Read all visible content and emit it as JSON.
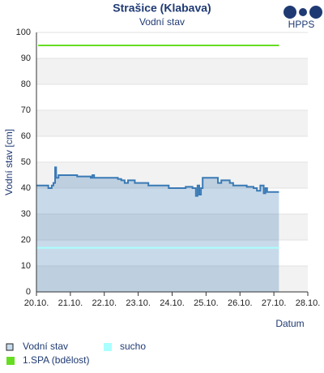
{
  "chart_data": {
    "type": "line",
    "title": "Strašice (Klabava)",
    "subtitle": "Vodní stav",
    "logo": "HPPS",
    "y_label": "Vodní stav [cm]",
    "x_label": "Datum",
    "xlim": [
      20,
      28
    ],
    "xticks": [
      {
        "value": 20,
        "label": "20.10."
      },
      {
        "value": 21,
        "label": "21.10."
      },
      {
        "value": 22,
        "label": "22.10."
      },
      {
        "value": 23,
        "label": "23.10."
      },
      {
        "value": 24,
        "label": "24.10."
      },
      {
        "value": 25,
        "label": "25.10."
      },
      {
        "value": 26,
        "label": "26.10."
      },
      {
        "value": 27,
        "label": "27.10."
      },
      {
        "value": 28,
        "label": "28.10."
      }
    ],
    "ylim": [
      0,
      100
    ],
    "yticks": [
      0,
      10,
      20,
      30,
      40,
      50,
      60,
      70,
      80,
      90,
      100
    ],
    "grid": true,
    "series": [
      {
        "name": "Vodní stav",
        "color": "#3a7ab5",
        "area": true,
        "step": true,
        "x": [
          20.0,
          20.3,
          20.35,
          20.45,
          20.5,
          20.55,
          20.58,
          20.65,
          21.0,
          21.2,
          21.6,
          21.65,
          21.7,
          22.4,
          22.5,
          22.6,
          22.7,
          22.9,
          23.3,
          23.8,
          23.9,
          24.4,
          24.6,
          24.7,
          24.75,
          24.8,
          24.85,
          24.9,
          25.3,
          25.35,
          25.45,
          25.6,
          25.7,
          25.8,
          26.0,
          26.2,
          26.4,
          26.5,
          26.6,
          26.7,
          26.75,
          26.8,
          27.15
        ],
        "values": [
          41,
          41,
          40,
          41,
          42,
          48,
          44,
          45,
          45,
          44.5,
          44,
          45,
          44,
          43.5,
          43,
          42,
          43,
          42,
          41,
          41,
          40,
          40.5,
          40,
          37,
          41,
          37.5,
          40,
          44,
          44,
          42,
          43,
          43,
          42,
          41,
          41,
          40.5,
          40,
          39,
          41,
          38,
          40,
          38.5,
          38.5
        ]
      },
      {
        "name": "sucho",
        "color": "#aaffff",
        "x": [
          20,
          27.15
        ],
        "values": [
          17,
          17
        ]
      },
      {
        "name": "1.SPA (bdělost)",
        "color": "#66dd22",
        "x": [
          20.05,
          27.15
        ],
        "values": [
          95,
          95
        ]
      }
    ]
  }
}
